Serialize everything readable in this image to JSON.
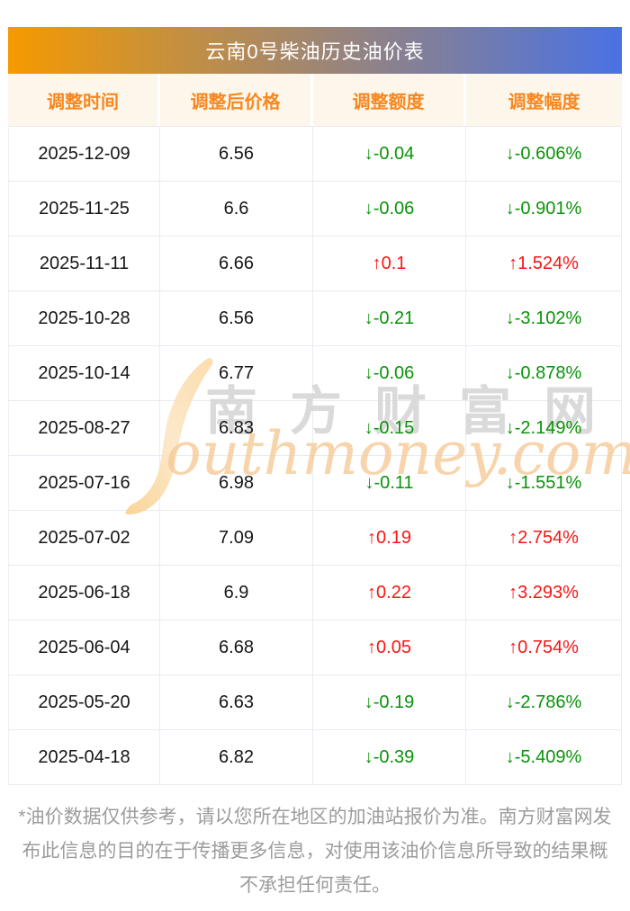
{
  "page": {
    "title": "云南0号柴油历史油价表"
  },
  "table": {
    "columns": [
      "调整时间",
      "调整后价格",
      "调整额度",
      "调整幅度"
    ],
    "arrows": {
      "up": "↑",
      "down": "↓"
    },
    "rows": [
      {
        "date": "2025-12-09",
        "price": "6.56",
        "change": "-0.04",
        "percent": "-0.606%",
        "direction": "down"
      },
      {
        "date": "2025-11-25",
        "price": "6.6",
        "change": "-0.06",
        "percent": "-0.901%",
        "direction": "down"
      },
      {
        "date": "2025-11-11",
        "price": "6.66",
        "change": "0.1",
        "percent": "1.524%",
        "direction": "up"
      },
      {
        "date": "2025-10-28",
        "price": "6.56",
        "change": "-0.21",
        "percent": "-3.102%",
        "direction": "down"
      },
      {
        "date": "2025-10-14",
        "price": "6.77",
        "change": "-0.06",
        "percent": "-0.878%",
        "direction": "down"
      },
      {
        "date": "2025-08-27",
        "price": "6.83",
        "change": "-0.15",
        "percent": "-2.149%",
        "direction": "down"
      },
      {
        "date": "2025-07-16",
        "price": "6.98",
        "change": "-0.11",
        "percent": "-1.551%",
        "direction": "down"
      },
      {
        "date": "2025-07-02",
        "price": "7.09",
        "change": "0.19",
        "percent": "2.754%",
        "direction": "up"
      },
      {
        "date": "2025-06-18",
        "price": "6.9",
        "change": "0.22",
        "percent": "3.293%",
        "direction": "up"
      },
      {
        "date": "2025-06-04",
        "price": "6.68",
        "change": "0.05",
        "percent": "0.754%",
        "direction": "up"
      },
      {
        "date": "2025-05-20",
        "price": "6.63",
        "change": "-0.19",
        "percent": "-2.786%",
        "direction": "down"
      },
      {
        "date": "2025-04-18",
        "price": "6.82",
        "change": "-0.39",
        "percent": "-5.409%",
        "direction": "down"
      }
    ]
  },
  "watermark": {
    "cjk": "南方财富网",
    "script": "outhmoney.com"
  },
  "disclaimer": "*油价数据仅供参考，请以您所在地区的加油站报价为准。南方财富网发布此信息的目的在于传播更多信息，对使用该油价信息所导致的结果概不承担任何责任。",
  "colors": {
    "gradient_left": "#f59a00",
    "gradient_right": "#4a72e4",
    "header_text": "#f8871f",
    "header_bg": "#fdf6ea",
    "up_red": "#fa1414",
    "down_green": "#0a930a",
    "border": "#e8ebf2",
    "disclaimer_text": "#9c9c9c"
  }
}
